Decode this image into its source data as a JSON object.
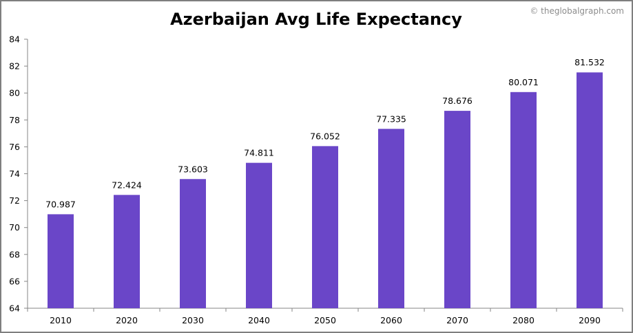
{
  "chart_data": {
    "type": "bar",
    "title": "Azerbaijan Avg Life Expectancy",
    "credit": "© theglobalgraph.com",
    "xlabel": "",
    "ylabel": "",
    "categories": [
      "2010",
      "2020",
      "2030",
      "2040",
      "2050",
      "2060",
      "2070",
      "2080",
      "2090"
    ],
    "values": [
      70.987,
      72.424,
      73.603,
      74.811,
      76.052,
      77.335,
      78.676,
      80.071,
      81.532
    ],
    "value_labels": [
      "70.987",
      "72.424",
      "73.603",
      "74.811",
      "76.052",
      "77.335",
      "78.676",
      "80.071",
      "81.532"
    ],
    "ylim": [
      64,
      84
    ],
    "yticks": [
      "64",
      "66",
      "68",
      "70",
      "72",
      "74",
      "76",
      "78",
      "80",
      "82",
      "84"
    ],
    "grid": false,
    "legend": "none",
    "bar_color": "#6a46c8"
  }
}
